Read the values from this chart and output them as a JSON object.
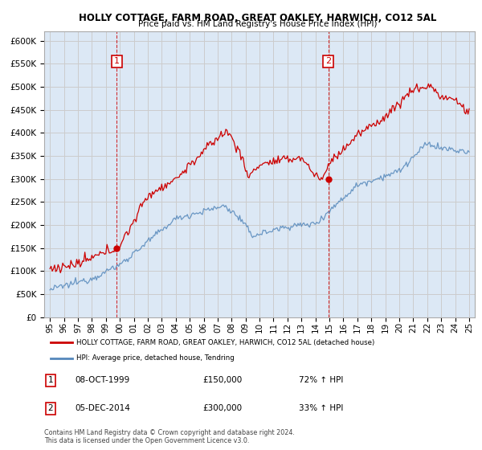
{
  "title": "HOLLY COTTAGE, FARM ROAD, GREAT OAKLEY, HARWICH, CO12 5AL",
  "subtitle": "Price paid vs. HM Land Registry's House Price Index (HPI)",
  "legend_line1": "HOLLY COTTAGE, FARM ROAD, GREAT OAKLEY, HARWICH, CO12 5AL (detached house)",
  "legend_line2": "HPI: Average price, detached house, Tendring",
  "footnote": "Contains HM Land Registry data © Crown copyright and database right 2024.\nThis data is licensed under the Open Government Licence v3.0.",
  "transactions": [
    {
      "date": 1999.78,
      "price": 150000,
      "label": "1"
    },
    {
      "date": 2014.92,
      "price": 300000,
      "label": "2"
    }
  ],
  "transaction_info": [
    {
      "label": "1",
      "date": "08-OCT-1999",
      "price": "£150,000",
      "hpi": "72% ↑ HPI"
    },
    {
      "label": "2",
      "date": "05-DEC-2014",
      "price": "£300,000",
      "hpi": "33% ↑ HPI"
    }
  ],
  "red_color": "#cc0000",
  "blue_color": "#5588bb",
  "vline_color": "#cc0000",
  "grid_color": "#cccccc",
  "bg_color": "#ffffff",
  "plot_bg_color": "#dce8f5",
  "ylim": [
    0,
    620000
  ],
  "yticks": [
    0,
    50000,
    100000,
    150000,
    200000,
    250000,
    300000,
    350000,
    400000,
    450000,
    500000,
    550000,
    600000
  ],
  "xlim_start": 1994.6,
  "xlim_end": 2025.4
}
